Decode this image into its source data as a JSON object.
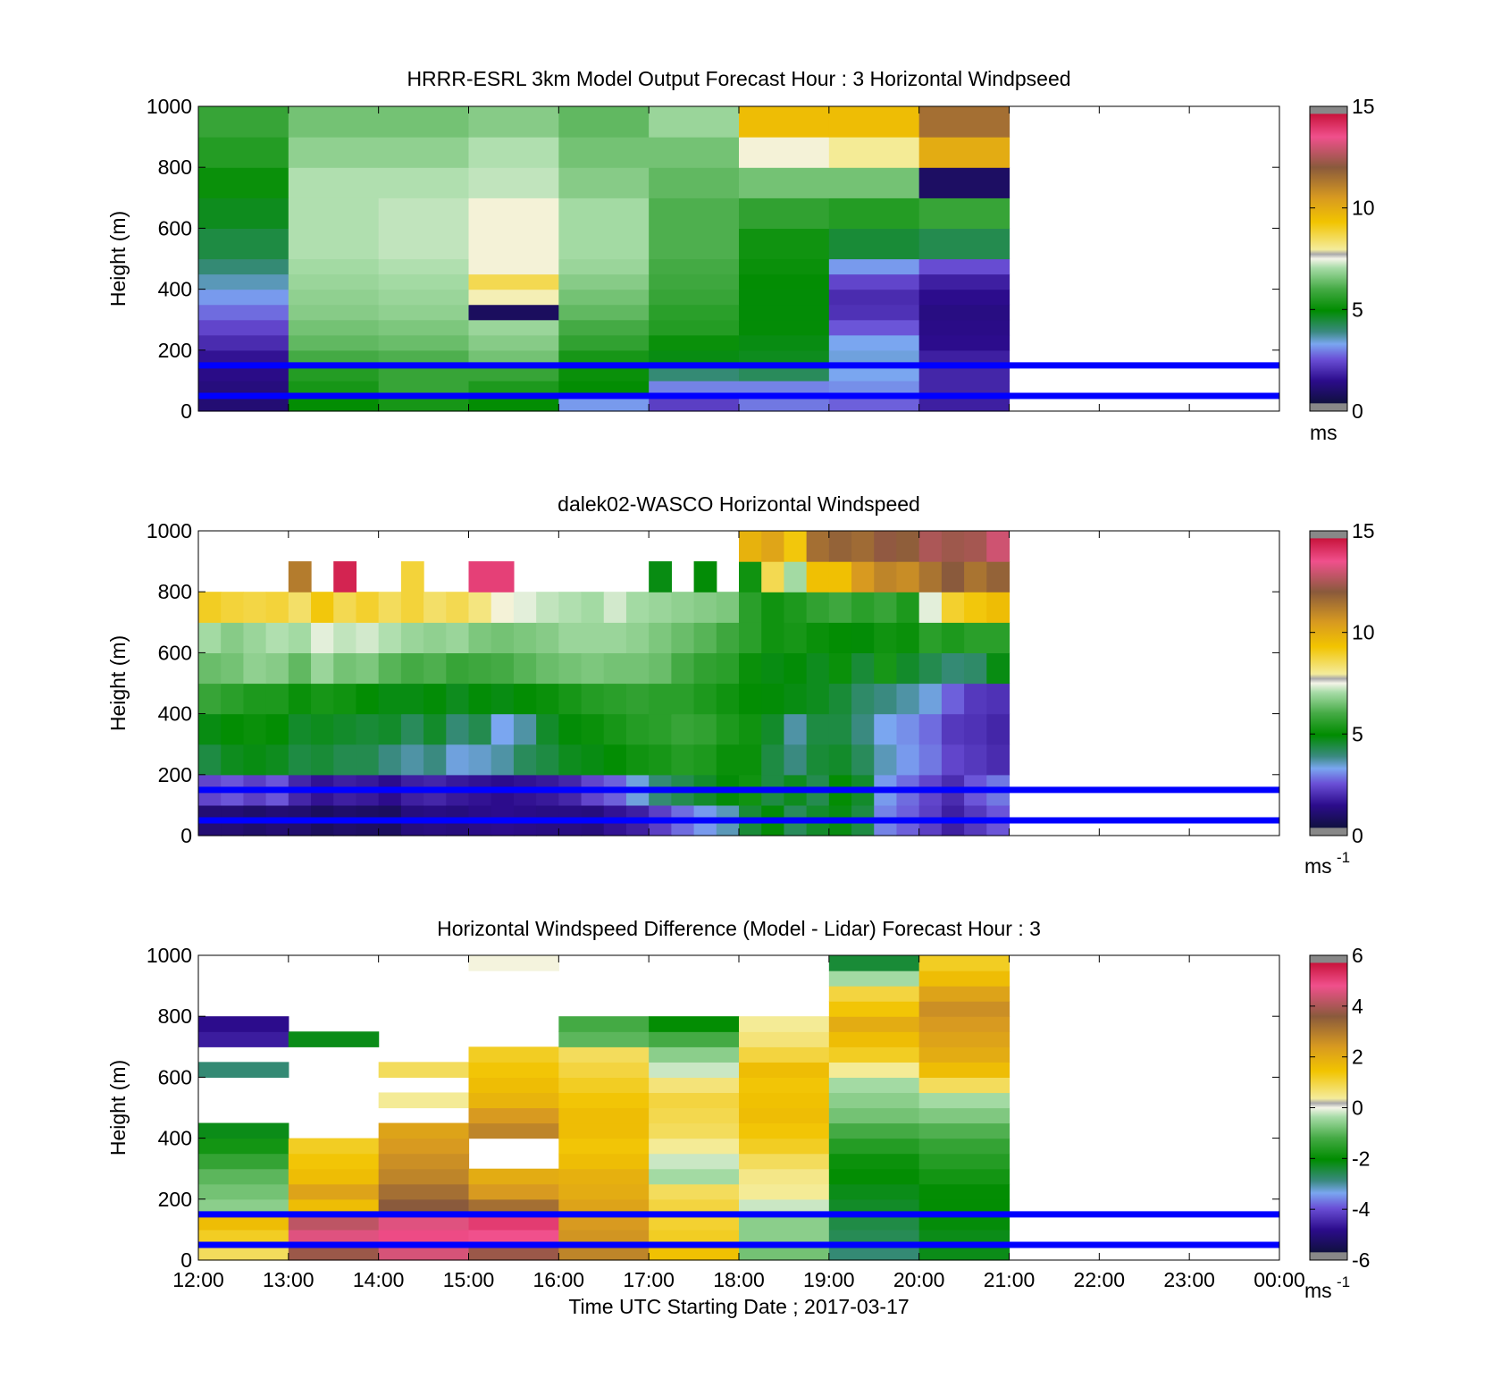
{
  "figure": {
    "time_axis_label": "Time UTC  Starting Date ; 2017-03-17",
    "x_tick_labels": [
      "12:00",
      "13:00",
      "14:00",
      "15:00",
      "16:00",
      "17:00",
      "18:00",
      "19:00",
      "20:00",
      "21:00",
      "22:00",
      "23:00",
      "00:00"
    ]
  },
  "chart_data": [
    {
      "type": "heatmap",
      "title": "HRRR-ESRL 3km Model Output   Forecast Hour : 3 Horizontal Windpseed",
      "ylabel": "Height (m)",
      "xlim": [
        "12:00",
        "00:00"
      ],
      "ylim": [
        0,
        1000
      ],
      "y_ticks": [
        "0",
        "200",
        "400",
        "600",
        "800",
        "1000"
      ],
      "colorbar": {
        "range": [
          0,
          15
        ],
        "ticks": [
          "0",
          "5",
          "10",
          "15"
        ],
        "unit_label": "ms",
        "unit_sup": ""
      },
      "reference_lines_m": [
        50,
        150
      ],
      "x_columns": [
        "12:00",
        "13:00",
        "14:00",
        "15:00",
        "16:00",
        "17:00",
        "18:00",
        "19:00",
        "20:00"
      ],
      "y_bin_bottoms_m": [
        0,
        50,
        100,
        150,
        200,
        250,
        300,
        350,
        400,
        450,
        500,
        600,
        700,
        800,
        900
      ],
      "values": [
        [
          1.0,
          5.0,
          5.3,
          5.0,
          3.2,
          2.3,
          2.9,
          2.7,
          1.8
        ],
        [
          1.2,
          5.3,
          5.8,
          5.4,
          5.0,
          3.0,
          3.0,
          3.1,
          1.9
        ],
        [
          1.4,
          5.5,
          5.8,
          5.8,
          5.1,
          4.0,
          4.2,
          3.3,
          1.9
        ],
        [
          1.6,
          6.0,
          6.1,
          6.5,
          5.3,
          4.8,
          4.7,
          3.4,
          1.8
        ],
        [
          2.0,
          6.3,
          6.4,
          6.7,
          5.7,
          5.1,
          4.8,
          3.3,
          1.5
        ],
        [
          2.4,
          6.5,
          6.6,
          6.9,
          6.0,
          5.5,
          4.9,
          2.6,
          1.4
        ],
        [
          2.8,
          6.7,
          6.8,
          0.6,
          6.3,
          5.6,
          4.9,
          2.1,
          1.3
        ],
        [
          3.2,
          6.8,
          6.9,
          7.8,
          6.5,
          5.8,
          4.9,
          2.0,
          1.5
        ],
        [
          3.6,
          6.9,
          7.0,
          8.6,
          6.7,
          5.9,
          5.0,
          2.4,
          1.8
        ],
        [
          4.0,
          7.0,
          7.1,
          7.6,
          6.9,
          6.0,
          5.1,
          3.2,
          2.5
        ],
        [
          4.4,
          7.1,
          7.2,
          7.6,
          7.0,
          6.1,
          5.2,
          4.5,
          4.3
        ],
        [
          4.7,
          7.1,
          7.2,
          7.6,
          7.0,
          6.1,
          5.7,
          5.5,
          5.8
        ],
        [
          5.1,
          7.1,
          7.1,
          7.2,
          6.7,
          6.3,
          6.5,
          6.5,
          0.7
        ],
        [
          5.5,
          6.8,
          6.8,
          7.1,
          6.5,
          6.5,
          7.6,
          8.0,
          10.0
        ],
        [
          5.8,
          6.5,
          6.5,
          6.7,
          6.3,
          6.9,
          9.5,
          9.5,
          11.5
        ]
      ]
    },
    {
      "type": "heatmap",
      "title": "dalek02-WASCO  Horizontal Windspeed",
      "ylabel": "Height (m)",
      "xlim": [
        "12:00",
        "00:00"
      ],
      "ylim": [
        0,
        1000
      ],
      "y_ticks": [
        "0",
        "200",
        "400",
        "600",
        "800",
        "1000"
      ],
      "colorbar": {
        "range": [
          0,
          15
        ],
        "ticks": [
          "0",
          "5",
          "10",
          "15"
        ],
        "unit_label": "ms",
        "unit_sup": "-1"
      },
      "reference_lines_m": [
        50,
        150
      ],
      "x_columns": [
        "12:00",
        "12:15",
        "12:30",
        "12:45",
        "13:00",
        "13:15",
        "13:30",
        "13:45",
        "14:00",
        "14:15",
        "14:30",
        "14:45",
        "15:00",
        "15:15",
        "15:30",
        "15:45",
        "16:00",
        "16:15",
        "16:30",
        "16:45",
        "17:00",
        "17:15",
        "17:30",
        "17:45",
        "18:00",
        "18:15",
        "18:30",
        "18:45",
        "19:00",
        "19:15",
        "19:30",
        "19:45",
        "20:00",
        "20:15",
        "20:30",
        "20:45"
      ],
      "y_bin_bottoms_m": [
        0,
        100,
        200,
        300,
        400,
        500,
        600,
        700,
        800,
        900
      ],
      "values": [
        [
          1.0,
          1.0,
          0.8,
          1.0,
          0.9,
          0.6,
          0.8,
          0.7,
          0.6,
          1.2,
          1.3,
          1.2,
          1.4,
          1.5,
          1.4,
          1.3,
          1.3,
          1.2,
          1.6,
          1.8,
          2.3,
          2.8,
          3.2,
          3.6,
          4.5,
          4.9,
          4.2,
          4.6,
          4.8,
          4.4,
          3.0,
          2.7,
          2.3,
          1.8,
          2.2,
          2.6
        ],
        [
          2.4,
          2.6,
          2.3,
          2.6,
          1.9,
          1.6,
          1.8,
          1.7,
          1.5,
          1.8,
          1.9,
          1.7,
          1.6,
          1.5,
          1.6,
          1.7,
          1.9,
          2.4,
          2.7,
          3.4,
          4.0,
          4.3,
          4.6,
          4.9,
          5.2,
          4.4,
          4.7,
          4.3,
          5.0,
          4.6,
          3.2,
          2.8,
          2.4,
          2.0,
          2.6,
          2.9
        ],
        [
          4.4,
          4.7,
          4.8,
          4.7,
          4.4,
          4.5,
          4.3,
          4.3,
          3.9,
          3.7,
          3.9,
          3.4,
          3.5,
          3.7,
          4.2,
          4.4,
          4.7,
          4.8,
          5.0,
          5.2,
          5.3,
          5.5,
          5.4,
          5.1,
          5.1,
          4.4,
          3.9,
          4.5,
          4.6,
          4.2,
          3.6,
          3.2,
          2.9,
          2.4,
          2.2,
          2.0
        ],
        [
          4.8,
          5.0,
          5.1,
          5.0,
          4.6,
          4.7,
          4.6,
          4.5,
          4.6,
          4.2,
          4.6,
          4.0,
          4.3,
          3.3,
          3.7,
          4.6,
          4.9,
          5.1,
          5.3,
          5.5,
          5.6,
          5.8,
          5.7,
          5.4,
          5.2,
          4.6,
          3.7,
          4.4,
          4.4,
          3.9,
          3.3,
          3.1,
          2.8,
          2.2,
          2.1,
          1.9
        ],
        [
          5.8,
          5.6,
          5.4,
          5.4,
          5.1,
          5.3,
          5.2,
          5.0,
          4.8,
          4.8,
          4.9,
          4.7,
          4.9,
          4.8,
          5.0,
          5.1,
          5.3,
          5.5,
          5.6,
          5.7,
          5.6,
          5.6,
          5.4,
          5.2,
          5.0,
          4.9,
          4.8,
          4.7,
          4.5,
          4.1,
          3.9,
          3.7,
          3.4,
          2.7,
          2.2,
          2.1
        ],
        [
          6.4,
          6.5,
          6.8,
          6.7,
          6.3,
          6.9,
          6.5,
          6.6,
          6.2,
          6.0,
          6.1,
          5.8,
          5.9,
          6.0,
          6.2,
          6.4,
          6.5,
          6.6,
          6.5,
          6.5,
          6.4,
          6.0,
          5.7,
          5.6,
          5.1,
          4.8,
          4.9,
          4.7,
          5.1,
          4.5,
          5.3,
          4.6,
          4.3,
          4.0,
          4.1,
          4.8
        ],
        [
          7.0,
          6.7,
          6.9,
          7.1,
          7.0,
          7.4,
          7.2,
          7.3,
          7.1,
          6.9,
          6.8,
          6.9,
          6.6,
          6.5,
          6.6,
          6.7,
          6.9,
          6.9,
          6.9,
          6.8,
          6.6,
          6.4,
          6.2,
          5.9,
          5.6,
          5.2,
          5.3,
          5.1,
          5.0,
          4.9,
          5.2,
          5.1,
          5.6,
          5.4,
          5.6,
          5.6
        ],
        [
          9.0,
          8.8,
          8.7,
          8.8,
          8.4,
          9.2,
          8.6,
          8.9,
          8.5,
          8.8,
          8.4,
          8.6,
          8.2,
          7.6,
          7.4,
          7.2,
          7.1,
          7.0,
          7.3,
          7.0,
          6.9,
          6.8,
          6.7,
          6.6,
          5.6,
          5.2,
          5.4,
          5.7,
          5.9,
          5.6,
          5.8,
          5.4,
          7.4,
          8.9,
          9.2,
          9.5
        ],
        [
          0,
          0,
          0,
          0,
          11.2,
          0,
          14.6,
          0,
          0,
          8.8,
          0,
          0,
          13.9,
          13.9,
          0,
          0,
          0,
          0,
          0,
          0,
          4.8,
          0,
          4.9,
          0,
          5.2,
          8.6,
          7.0,
          9.4,
          9.4,
          10.5,
          11.0,
          10.8,
          11.4,
          12.0,
          11.4,
          11.8
        ],
        [
          0,
          0,
          0,
          0,
          0,
          0,
          0,
          0,
          0,
          0,
          0,
          0,
          0,
          0,
          0,
          0,
          0,
          0,
          0,
          0,
          0,
          0,
          0,
          0,
          9.8,
          10.2,
          9.2,
          11.5,
          11.8,
          11.6,
          12.1,
          11.9,
          12.5,
          12.3,
          12.4,
          13.0
        ]
      ]
    },
    {
      "type": "heatmap",
      "title": "Horizontal Windspeed Difference (Model - Lidar) Forecast Hour : 3",
      "ylabel": "Height (m)",
      "xlabel": "Time UTC  Starting Date ; 2017-03-17",
      "xlim": [
        "12:00",
        "00:00"
      ],
      "ylim": [
        0,
        1000
      ],
      "y_ticks": [
        "0",
        "200",
        "400",
        "600",
        "800",
        "1000"
      ],
      "colorbar": {
        "range": [
          -6,
          6
        ],
        "ticks": [
          "-6",
          "-4",
          "-2",
          "0",
          "2",
          "4",
          "6"
        ],
        "unit_label": "ms",
        "unit_sup": "-1"
      },
      "reference_lines_m": [
        50,
        150
      ],
      "x_columns": [
        "12:00",
        "13:00",
        "14:00",
        "15:00",
        "16:00",
        "17:00",
        "18:00",
        "19:00",
        "20:00"
      ],
      "y_bin_bottoms_m": [
        0,
        50,
        100,
        150,
        200,
        250,
        300,
        350,
        400,
        450,
        500,
        550,
        600,
        650,
        700,
        750,
        800,
        850,
        900,
        950
      ],
      "values": [
        [
          0.8,
          3.8,
          4.5,
          3.8,
          2.8,
          1.5,
          -0.8,
          -2.8,
          -2.2
        ],
        [
          1.2,
          4.6,
          4.9,
          4.8,
          2.5,
          1.2,
          -0.6,
          -2.6,
          -2.2
        ],
        [
          1.6,
          4.2,
          4.6,
          5.2,
          2.4,
          1.1,
          -0.6,
          -2.5,
          -2.1
        ],
        [
          -0.6,
          1.6,
          3.6,
          3.2,
          2.2,
          1.0,
          -0.2,
          -2.3,
          -2.0
        ],
        [
          -0.8,
          2.2,
          3.2,
          2.4,
          2.0,
          0.8,
          0.4,
          -2.2,
          -2.0
        ],
        [
          -1.0,
          1.6,
          2.8,
          2.0,
          1.9,
          -0.4,
          0.5,
          -2.0,
          -1.8
        ],
        [
          -1.4,
          1.4,
          2.6,
          null,
          1.6,
          -0.2,
          0.8,
          -1.9,
          -1.6
        ],
        [
          -1.8,
          1.2,
          2.4,
          null,
          1.4,
          0.4,
          1.2,
          -1.6,
          -1.4
        ],
        [
          -2.2,
          null,
          2.2,
          2.8,
          1.6,
          0.8,
          1.4,
          -1.2,
          -1.1
        ],
        [
          null,
          null,
          null,
          2.4,
          1.6,
          0.9,
          1.6,
          -0.8,
          -0.7
        ],
        [
          null,
          null,
          0.4,
          1.8,
          1.4,
          1.0,
          1.5,
          -0.6,
          -0.4
        ],
        [
          null,
          null,
          null,
          1.6,
          1.2,
          0.6,
          1.4,
          -0.4,
          0.8
        ],
        [
          -2.8,
          null,
          0.8,
          1.4,
          1.0,
          -0.2,
          1.6,
          0.4,
          1.6
        ],
        [
          null,
          null,
          null,
          1.2,
          0.8,
          -0.6,
          1.0,
          1.2,
          2.0
        ],
        [
          -4.6,
          -2.2,
          null,
          null,
          -1.0,
          -1.2,
          0.6,
          1.6,
          2.2
        ],
        [
          -4.8,
          null,
          null,
          null,
          -1.2,
          -2.0,
          0.4,
          2.0,
          2.4
        ],
        [
          null,
          null,
          null,
          null,
          null,
          null,
          null,
          1.4,
          2.6
        ],
        [
          null,
          null,
          null,
          null,
          null,
          null,
          null,
          1.0,
          2.2
        ],
        [
          null,
          null,
          null,
          null,
          null,
          null,
          null,
          -0.4,
          1.6
        ],
        [
          null,
          null,
          null,
          0.05,
          null,
          null,
          null,
          -2.4,
          1.2
        ]
      ]
    }
  ]
}
